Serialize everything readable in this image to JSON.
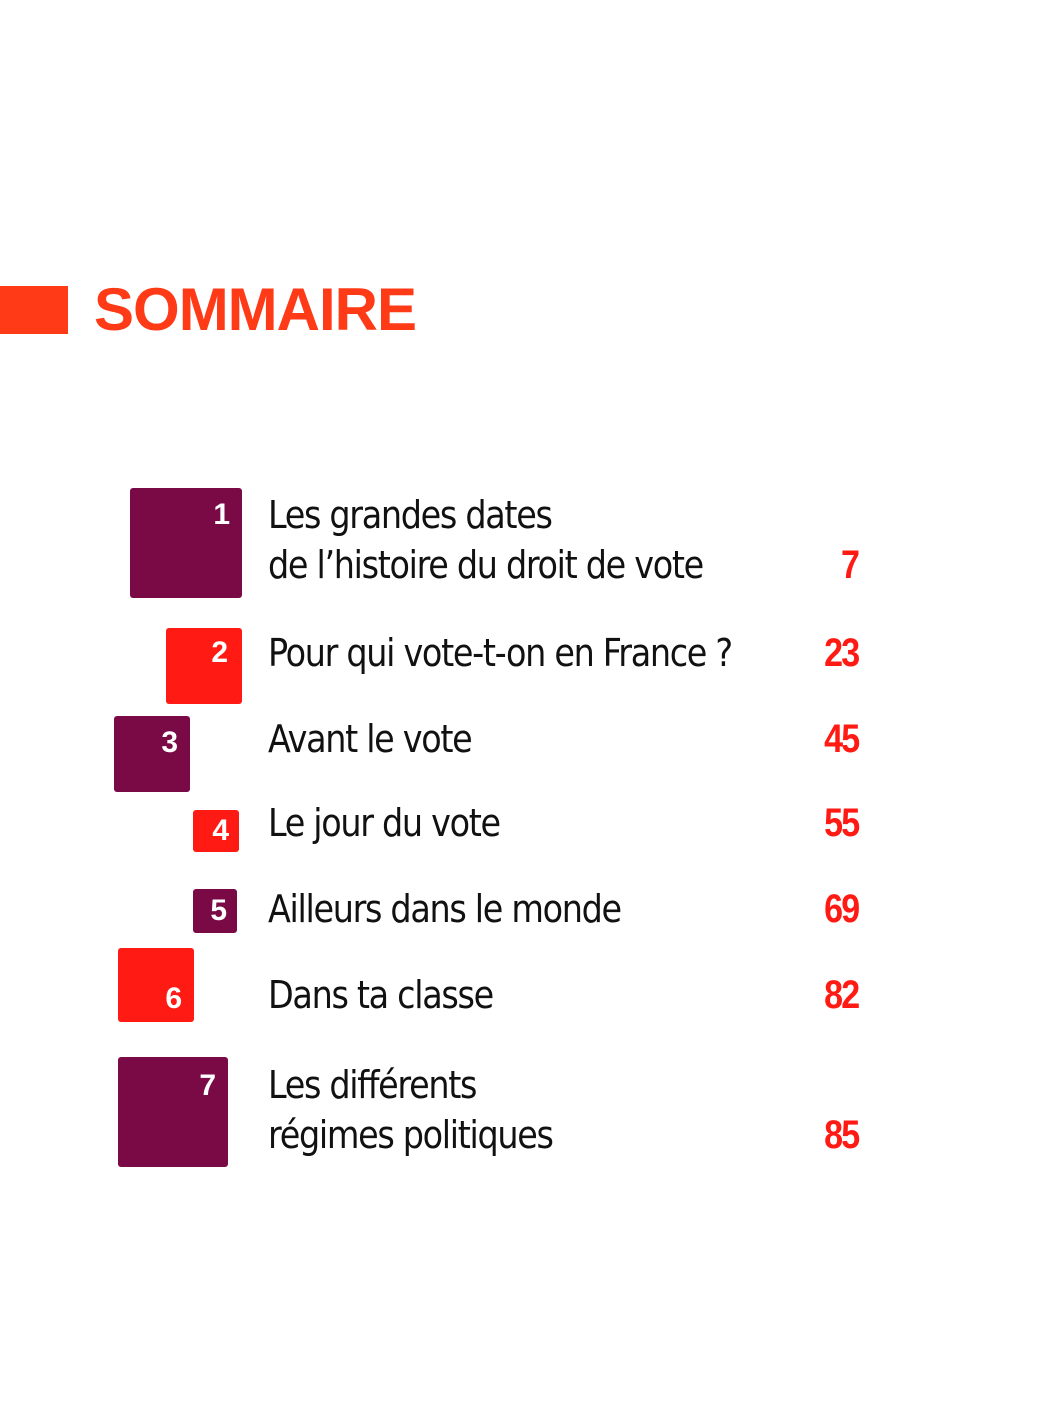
{
  "header": {
    "title": "SOMMAIRE",
    "accent_color": "#ff3a17"
  },
  "colors": {
    "plum": "#7a0a46",
    "red": "#ff1a14"
  },
  "entries": [
    {
      "number": "1",
      "line1": "Les grandes dates",
      "line2": "de l’histoire du droit de vote",
      "page": "7",
      "color": "plum"
    },
    {
      "number": "2",
      "line1": "Pour qui vote-t-on en France ?",
      "page": "23",
      "color": "red"
    },
    {
      "number": "3",
      "line1": "Avant le vote",
      "page": "45",
      "color": "plum"
    },
    {
      "number": "4",
      "line1": "Le jour du vote",
      "page": "55",
      "color": "red"
    },
    {
      "number": "5",
      "line1": "Ailleurs dans le monde",
      "page": "69",
      "color": "plum"
    },
    {
      "number": "6",
      "line1": "Dans ta classe",
      "page": "82",
      "color": "red"
    },
    {
      "number": "7",
      "line1": "Les différents",
      "line2": "régimes politiques",
      "page": "85",
      "color": "plum"
    }
  ]
}
